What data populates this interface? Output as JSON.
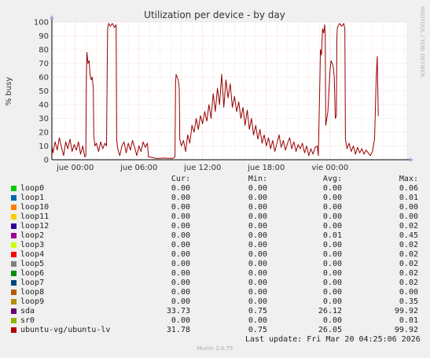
{
  "chart_data": {
    "type": "line",
    "title": "Utilization per device - by day",
    "ylabel": "% busy",
    "watermark": "RRDTOOL / TOBI OETIKER",
    "ylim": [
      0,
      100
    ],
    "yticks": [
      0,
      10,
      20,
      30,
      40,
      50,
      60,
      70,
      80,
      90,
      100
    ],
    "xlim": [
      -2.2,
      31.2
    ],
    "xticks": [
      {
        "label": "jue 00:00",
        "hour": 0
      },
      {
        "label": "jue 06:00",
        "hour": 6
      },
      {
        "label": "jue 12:00",
        "hour": 12
      },
      {
        "label": "jue 18:00",
        "hour": 18
      },
      {
        "label": "vie 00:00",
        "hour": 24
      }
    ],
    "grid": true,
    "series": [
      {
        "name": "ubuntu-vg/ubuntu-lv",
        "color": "#990000",
        "points": [
          [
            -2.2,
            10
          ],
          [
            -2.1,
            5
          ],
          [
            -1.9,
            13
          ],
          [
            -1.7,
            7
          ],
          [
            -1.5,
            16
          ],
          [
            -1.3,
            9
          ],
          [
            -1.1,
            3
          ],
          [
            -0.9,
            13
          ],
          [
            -0.7,
            8
          ],
          [
            -0.5,
            15
          ],
          [
            -0.3,
            6
          ],
          [
            -0.1,
            11
          ],
          [
            0.1,
            7
          ],
          [
            0.3,
            13
          ],
          [
            0.5,
            4
          ],
          [
            0.7,
            10
          ],
          [
            0.9,
            2
          ],
          [
            1.0,
            3
          ],
          [
            1.05,
            60
          ],
          [
            1.1,
            78
          ],
          [
            1.2,
            70
          ],
          [
            1.3,
            72
          ],
          [
            1.4,
            62
          ],
          [
            1.5,
            58
          ],
          [
            1.6,
            60
          ],
          [
            1.7,
            52
          ],
          [
            1.75,
            18
          ],
          [
            1.85,
            10
          ],
          [
            2.0,
            12
          ],
          [
            2.2,
            6
          ],
          [
            2.4,
            13
          ],
          [
            2.6,
            8
          ],
          [
            2.8,
            12
          ],
          [
            2.95,
            10
          ],
          [
            3.0,
            55
          ],
          [
            3.05,
            95
          ],
          [
            3.15,
            99
          ],
          [
            3.3,
            97
          ],
          [
            3.5,
            99
          ],
          [
            3.7,
            96
          ],
          [
            3.85,
            98
          ],
          [
            3.9,
            15
          ],
          [
            4.0,
            8
          ],
          [
            4.2,
            3
          ],
          [
            4.4,
            10
          ],
          [
            4.6,
            13
          ],
          [
            4.8,
            5
          ],
          [
            5.0,
            12
          ],
          [
            5.2,
            7
          ],
          [
            5.4,
            14
          ],
          [
            5.6,
            9
          ],
          [
            5.8,
            3
          ],
          [
            6.0,
            10
          ],
          [
            6.2,
            6
          ],
          [
            6.4,
            13
          ],
          [
            6.6,
            9
          ],
          [
            6.8,
            12
          ],
          [
            6.9,
            2
          ],
          [
            7.0,
            2
          ],
          [
            7.3,
            1.5
          ],
          [
            7.6,
            1
          ],
          [
            8.0,
            1
          ],
          [
            8.4,
            1.2
          ],
          [
            8.8,
            1
          ],
          [
            9.2,
            1
          ],
          [
            9.4,
            2
          ],
          [
            9.45,
            55
          ],
          [
            9.5,
            62
          ],
          [
            9.6,
            60
          ],
          [
            9.7,
            58
          ],
          [
            9.8,
            52
          ],
          [
            9.85,
            15
          ],
          [
            10.0,
            10
          ],
          [
            10.2,
            14
          ],
          [
            10.4,
            6
          ],
          [
            10.6,
            18
          ],
          [
            10.8,
            12
          ],
          [
            11.0,
            25
          ],
          [
            11.2,
            20
          ],
          [
            11.4,
            30
          ],
          [
            11.6,
            22
          ],
          [
            11.8,
            32
          ],
          [
            12.0,
            26
          ],
          [
            12.2,
            35
          ],
          [
            12.4,
            28
          ],
          [
            12.6,
            40
          ],
          [
            12.8,
            30
          ],
          [
            13.0,
            48
          ],
          [
            13.2,
            35
          ],
          [
            13.4,
            52
          ],
          [
            13.6,
            40
          ],
          [
            13.8,
            62
          ],
          [
            14.0,
            38
          ],
          [
            14.2,
            58
          ],
          [
            14.4,
            45
          ],
          [
            14.6,
            55
          ],
          [
            14.8,
            38
          ],
          [
            15.0,
            46
          ],
          [
            15.2,
            35
          ],
          [
            15.4,
            42
          ],
          [
            15.6,
            30
          ],
          [
            15.8,
            38
          ],
          [
            16.0,
            25
          ],
          [
            16.2,
            36
          ],
          [
            16.4,
            22
          ],
          [
            16.6,
            30
          ],
          [
            16.8,
            18
          ],
          [
            17.0,
            25
          ],
          [
            17.2,
            15
          ],
          [
            17.4,
            22
          ],
          [
            17.6,
            12
          ],
          [
            17.8,
            18
          ],
          [
            18.0,
            10
          ],
          [
            18.2,
            16
          ],
          [
            18.4,
            8
          ],
          [
            18.6,
            14
          ],
          [
            18.8,
            6
          ],
          [
            19.0,
            12
          ],
          [
            19.2,
            18
          ],
          [
            19.4,
            9
          ],
          [
            19.6,
            14
          ],
          [
            19.8,
            7
          ],
          [
            20.0,
            12
          ],
          [
            20.2,
            16
          ],
          [
            20.4,
            8
          ],
          [
            20.6,
            13
          ],
          [
            20.8,
            6
          ],
          [
            21.0,
            11
          ],
          [
            21.2,
            8
          ],
          [
            21.4,
            12
          ],
          [
            21.6,
            5
          ],
          [
            21.8,
            10
          ],
          [
            22.0,
            3
          ],
          [
            22.2,
            8
          ],
          [
            22.4,
            4
          ],
          [
            22.6,
            9
          ],
          [
            22.8,
            10
          ],
          [
            22.9,
            3
          ],
          [
            23.0,
            40
          ],
          [
            23.05,
            60
          ],
          [
            23.1,
            80
          ],
          [
            23.2,
            76
          ],
          [
            23.3,
            95
          ],
          [
            23.4,
            92
          ],
          [
            23.5,
            98
          ],
          [
            23.55,
            90
          ],
          [
            23.6,
            25
          ],
          [
            23.8,
            35
          ],
          [
            24.0,
            65
          ],
          [
            24.1,
            72
          ],
          [
            24.3,
            68
          ],
          [
            24.4,
            60
          ],
          [
            24.5,
            30
          ],
          [
            24.6,
            32
          ],
          [
            24.65,
            90
          ],
          [
            24.7,
            96
          ],
          [
            24.9,
            99
          ],
          [
            25.1,
            97
          ],
          [
            25.3,
            99
          ],
          [
            25.4,
            95
          ],
          [
            25.45,
            15
          ],
          [
            25.6,
            8
          ],
          [
            25.8,
            12
          ],
          [
            26.0,
            6
          ],
          [
            26.2,
            10
          ],
          [
            26.4,
            4
          ],
          [
            26.6,
            9
          ],
          [
            26.8,
            5
          ],
          [
            27.0,
            8
          ],
          [
            27.2,
            4
          ],
          [
            27.4,
            7
          ],
          [
            27.6,
            5
          ],
          [
            27.8,
            3
          ],
          [
            28.0,
            6
          ],
          [
            28.2,
            15
          ],
          [
            28.35,
            58
          ],
          [
            28.45,
            75
          ],
          [
            28.5,
            55
          ],
          [
            28.55,
            31.78
          ]
        ]
      }
    ]
  },
  "legend": {
    "headers": {
      "cur": "Cur:",
      "min": "Min:",
      "avg": "Avg:",
      "max": "Max:"
    },
    "rows": [
      {
        "name": "loop0",
        "color": "#00cc00",
        "cur": "0.00",
        "min": "0.00",
        "avg": "0.00",
        "max": "0.06"
      },
      {
        "name": "loop1",
        "color": "#0066b3",
        "cur": "0.00",
        "min": "0.00",
        "avg": "0.00",
        "max": "0.01"
      },
      {
        "name": "loop10",
        "color": "#ff8000",
        "cur": "0.00",
        "min": "0.00",
        "avg": "0.00",
        "max": "0.00"
      },
      {
        "name": "loop11",
        "color": "#ffcc00",
        "cur": "0.00",
        "min": "0.00",
        "avg": "0.00",
        "max": "0.00"
      },
      {
        "name": "loop12",
        "color": "#330099",
        "cur": "0.00",
        "min": "0.00",
        "avg": "0.00",
        "max": "0.02"
      },
      {
        "name": "loop2",
        "color": "#990099",
        "cur": "0.00",
        "min": "0.00",
        "avg": "0.01",
        "max": "0.45"
      },
      {
        "name": "loop3",
        "color": "#ccff00",
        "cur": "0.00",
        "min": "0.00",
        "avg": "0.00",
        "max": "0.02"
      },
      {
        "name": "loop4",
        "color": "#ff0000",
        "cur": "0.00",
        "min": "0.00",
        "avg": "0.00",
        "max": "0.02"
      },
      {
        "name": "loop5",
        "color": "#808080",
        "cur": "0.00",
        "min": "0.00",
        "avg": "0.00",
        "max": "0.02"
      },
      {
        "name": "loop6",
        "color": "#008f00",
        "cur": "0.00",
        "min": "0.00",
        "avg": "0.00",
        "max": "0.02"
      },
      {
        "name": "loop7",
        "color": "#00487d",
        "cur": "0.00",
        "min": "0.00",
        "avg": "0.00",
        "max": "0.02"
      },
      {
        "name": "loop8",
        "color": "#b35a00",
        "cur": "0.00",
        "min": "0.00",
        "avg": "0.00",
        "max": "0.00"
      },
      {
        "name": "loop9",
        "color": "#b38f00",
        "cur": "0.00",
        "min": "0.00",
        "avg": "0.00",
        "max": "0.35"
      },
      {
        "name": "sda",
        "color": "#6b006b",
        "cur": "33.73",
        "min": "0.75",
        "avg": "26.12",
        "max": "99.92"
      },
      {
        "name": "sr0",
        "color": "#8fb300",
        "cur": "0.00",
        "min": "0.00",
        "avg": "0.00",
        "max": "0.01"
      },
      {
        "name": "ubuntu-vg/ubuntu-lv",
        "color": "#b30000",
        "cur": "31.78",
        "min": "0.75",
        "avg": "26.05",
        "max": "99.92"
      }
    ]
  },
  "footer": {
    "last_update": "Last update: Fri Mar 20 04:25:06 2026",
    "munin": "Munin 2.0.75"
  }
}
